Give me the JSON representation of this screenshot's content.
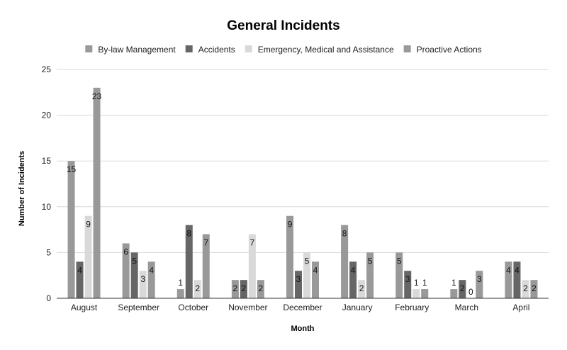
{
  "chart_data": {
    "type": "bar",
    "title": "General Incidents",
    "xlabel": "Month",
    "ylabel": "Number of Incidents",
    "ylim": [
      0,
      25
    ],
    "yticks": [
      0,
      5,
      10,
      15,
      20,
      25
    ],
    "grid": true,
    "legend_position": "top",
    "categories": [
      "August",
      "September",
      "October",
      "November",
      "December",
      "January",
      "February",
      "March",
      "April"
    ],
    "series": [
      {
        "name": "By-law Management",
        "color": "#999999",
        "values": [
          15,
          6,
          1,
          2,
          9,
          8,
          5,
          1,
          4
        ]
      },
      {
        "name": "Accidents",
        "color": "#666666",
        "values": [
          4,
          5,
          8,
          2,
          3,
          4,
          3,
          2,
          4
        ]
      },
      {
        "name": "Emergency, Medical and Assistance",
        "color": "#d9d9d9",
        "values": [
          9,
          3,
          2,
          7,
          5,
          2,
          1,
          0,
          2
        ]
      },
      {
        "name": "Proactive Actions",
        "color": "#999999",
        "values": [
          23,
          4,
          7,
          2,
          4,
          5,
          1,
          3,
          2
        ]
      }
    ]
  }
}
